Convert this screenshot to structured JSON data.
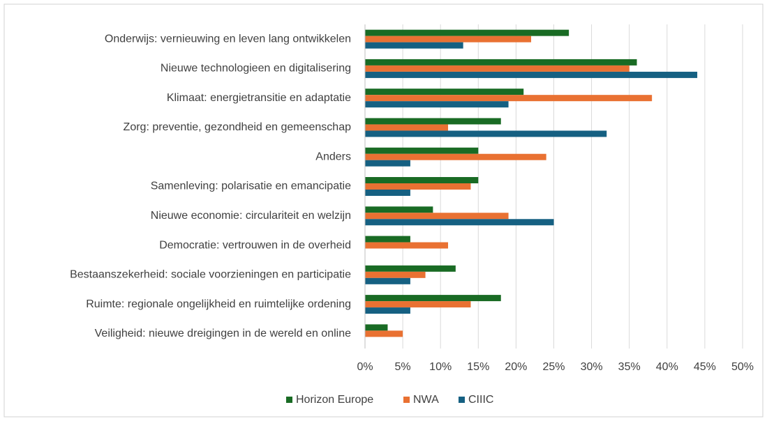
{
  "chart_data": {
    "type": "hbar",
    "categories": [
      "Onderwijs: vernieuwing en leven lang ontwikkelen",
      "Nieuwe technologieen en digitalisering",
      "Klimaat: energietransitie en adaptatie",
      "Zorg: preventie, gezondheid en gemeenschap",
      "Anders",
      "Samenleving: polarisatie en emancipatie",
      "Nieuwe economie: circulariteit en welzijn",
      "Democratie: vertrouwen in de overheid",
      "Bestaanszekerheid: sociale voorzieningen en participatie",
      "Ruimte: regionale ongelijkheid en ruimtelijke ordening",
      "Veiligheid: nieuwe dreigingen in de wereld en online"
    ],
    "series": [
      {
        "name": "Horizon Europe",
        "color": "#196B24",
        "values": [
          27,
          36,
          21,
          18,
          15,
          15,
          9,
          6,
          12,
          18,
          3
        ]
      },
      {
        "name": "NWA",
        "color": "#E97132",
        "values": [
          22,
          35,
          38,
          11,
          24,
          14,
          19,
          11,
          8,
          14,
          5
        ]
      },
      {
        "name": "CIIIC",
        "color": "#156082",
        "values": [
          13,
          44,
          19,
          32,
          6,
          6,
          25,
          0,
          6,
          6,
          0
        ]
      }
    ],
    "xlim": [
      0,
      50
    ],
    "xticks": [
      {
        "value": 0,
        "label": "0%"
      },
      {
        "value": 5,
        "label": "5%"
      },
      {
        "value": 10,
        "label": "10%"
      },
      {
        "value": 15,
        "label": "15%"
      },
      {
        "value": 20,
        "label": "20%"
      },
      {
        "value": 25,
        "label": "25%"
      },
      {
        "value": 30,
        "label": "30%"
      },
      {
        "value": 35,
        "label": "35%"
      },
      {
        "value": 40,
        "label": "40%"
      },
      {
        "value": 45,
        "label": "45%"
      },
      {
        "value": 50,
        "label": "50%"
      }
    ],
    "grid": true,
    "legend": "bottom"
  }
}
